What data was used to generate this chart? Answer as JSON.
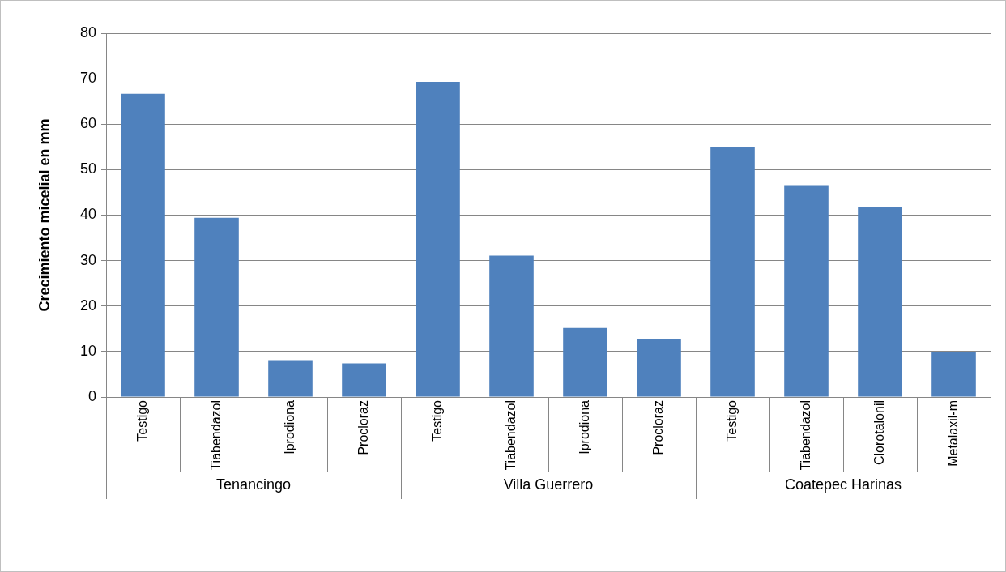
{
  "chart_data": {
    "type": "bar",
    "ylabel": "Crecimiento micelial en mm",
    "categories": [
      "Testigo",
      "Tiabendazol",
      "Iprodiona",
      "Procloraz",
      "Testigo",
      "Tiabendazol",
      "Iprodiona",
      "Procloraz",
      "Testigo",
      "Tiabendazol",
      "Clorotalonil",
      "Metalaxil-m"
    ],
    "values": [
      66.7,
      39.4,
      8.1,
      7.4,
      69.3,
      31.1,
      15.2,
      12.8,
      54.9,
      46.6,
      41.7,
      9.9
    ],
    "color": "#4f81bd",
    "annotations": [
      "Tenancingo",
      "Villa Guerrero",
      "Coatepec Harinas"
    ],
    "ylim": [
      0,
      80
    ],
    "yticks": [
      0,
      10,
      20,
      30,
      40,
      50,
      60,
      70,
      80
    ],
    "grid": "y",
    "legend": false
  }
}
